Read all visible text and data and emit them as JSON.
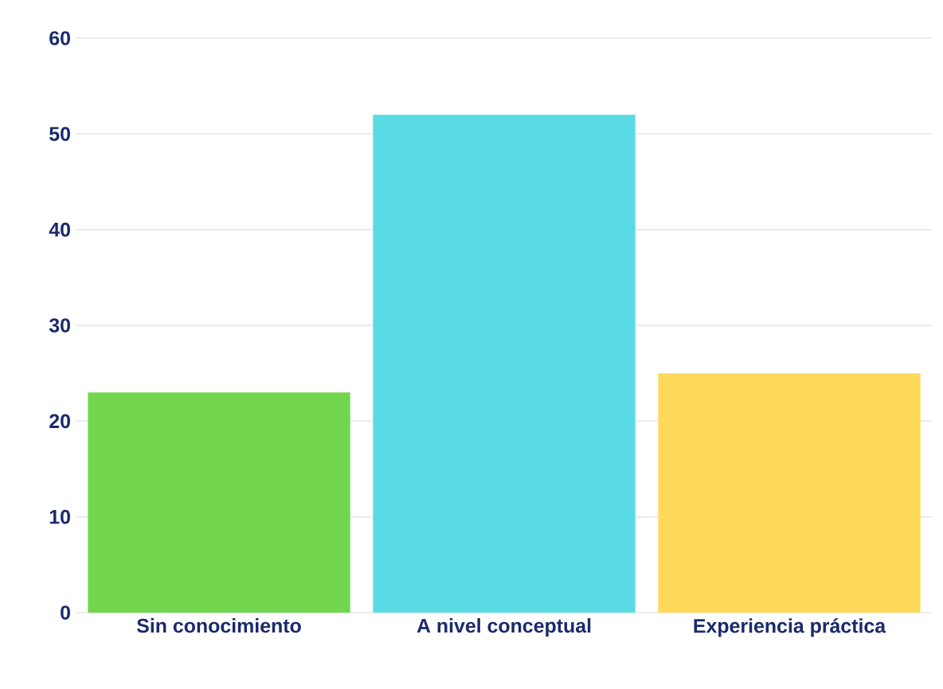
{
  "chart_data": {
    "type": "bar",
    "categories": [
      "Sin conocimiento",
      "A nivel conceptual",
      "Experiencia práctica"
    ],
    "values": [
      23,
      52,
      25
    ],
    "colors": [
      "#72d64f",
      "#5adbe3",
      "#ffd95a"
    ],
    "ylim": [
      0,
      60
    ],
    "yticks": [
      0,
      10,
      20,
      30,
      40,
      50,
      60
    ],
    "grid": "y"
  }
}
